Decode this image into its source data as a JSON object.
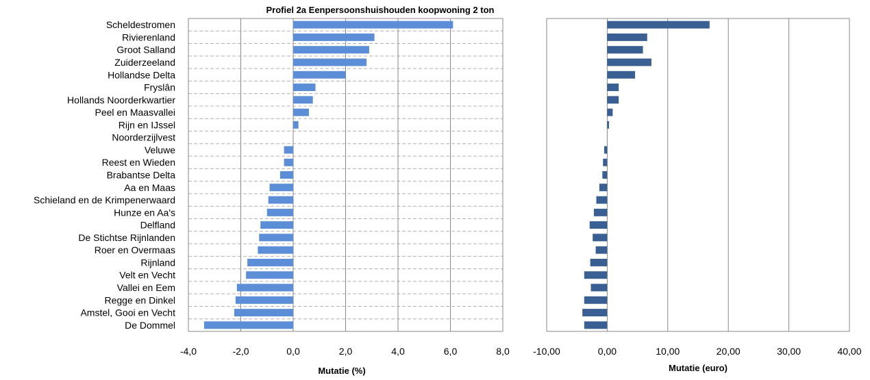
{
  "chart_data": [
    {
      "type": "bar",
      "orientation": "horizontal",
      "title": "Profiel 2a Eenpersoonshuishouden koopwoning 2 ton",
      "xlabel": "Mutatie (%)",
      "ylabel": "",
      "xlim": [
        -4.0,
        8.0
      ],
      "xticks": [
        "-4,0",
        "-2,0",
        "0,0",
        "2,0",
        "4,0",
        "6,0",
        "8,0"
      ],
      "grid": "vertical lines solid, horizontal lines dashed",
      "categories": [
        "Scheldestromen",
        "Rivierenland",
        "Groot Salland",
        "Zuiderzeeland",
        "Hollandse Delta",
        "Fryslân",
        "Hollands Noorderkwartier",
        "Peel en Maasvallei",
        "Rijn en IJssel",
        "Noorderzijlvest",
        "Veluwe",
        "Reest en Wieden",
        "Brabantse Delta",
        "Aa en Maas",
        "Schieland en de Krimpenerwaard",
        "Hunze en Aa's",
        "Delfland",
        "De Stichtse Rijnlanden",
        "Roer en Overmaas",
        "Rijnland",
        "Velt en Vecht",
        "Vallei en Eem",
        "Regge en Dinkel",
        "Amstel, Gooi en Vecht",
        "De Dommel"
      ],
      "values": [
        6.1,
        3.1,
        2.9,
        2.8,
        2.0,
        0.85,
        0.75,
        0.6,
        0.2,
        0.0,
        -0.35,
        -0.35,
        -0.5,
        -0.9,
        -0.95,
        -1.0,
        -1.25,
        -1.3,
        -1.35,
        -1.75,
        -1.8,
        -2.15,
        -2.2,
        -2.25,
        -3.4
      ],
      "bar_color": "#5B8ED6"
    },
    {
      "type": "bar",
      "orientation": "horizontal",
      "title": "",
      "xlabel": "Mutatie (euro)",
      "ylabel": "",
      "xlim": [
        -10.0,
        40.0
      ],
      "xticks": [
        "-10,00",
        "0,00",
        "10,00",
        "20,00",
        "30,00",
        "40,00"
      ],
      "grid": "vertical lines",
      "values": [
        16.9,
        6.6,
        5.9,
        7.3,
        4.6,
        1.9,
        1.9,
        0.9,
        0.3,
        0.0,
        -0.5,
        -0.7,
        -0.8,
        -1.3,
        -1.8,
        -2.2,
        -2.9,
        -2.4,
        -1.9,
        -2.8,
        -3.8,
        -2.7,
        -3.8,
        -4.1,
        -3.8
      ],
      "bar_color": "#3A5F93"
    }
  ]
}
